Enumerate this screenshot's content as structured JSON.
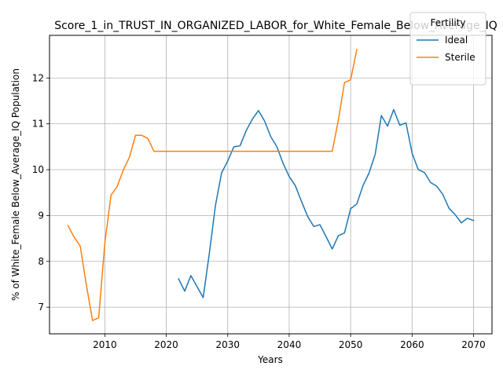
{
  "chart_data": {
    "type": "line",
    "title": "Score_1_in_TRUST_IN_ORGANIZED_LABOR_for_White_Female_Below_Average_IQ",
    "xlabel": "Years",
    "ylabel": "% of White_Female Below_Average_IQ Population",
    "xlim": [
      2001,
      2073
    ],
    "ylim": [
      6.42,
      12.93
    ],
    "xticks": [
      2010,
      2020,
      2030,
      2040,
      2050,
      2060,
      2070
    ],
    "yticks": [
      7,
      8,
      9,
      10,
      11,
      12
    ],
    "grid": true,
    "legend": {
      "title": "Fertility",
      "placement": "top-right"
    },
    "series": [
      {
        "name": "Ideal",
        "color": "#1f77b4",
        "x": [
          2022,
          2023,
          2024,
          2025,
          2026,
          2027,
          2028,
          2029,
          2030,
          2031,
          2032,
          2033,
          2034,
          2035,
          2036,
          2037,
          2038,
          2039,
          2040,
          2041,
          2042,
          2043,
          2044,
          2045,
          2046,
          2047,
          2048,
          2049,
          2050,
          2051,
          2052,
          2053,
          2054,
          2055,
          2056,
          2057,
          2058,
          2059,
          2060,
          2061,
          2062,
          2063,
          2064,
          2065,
          2066,
          2067,
          2068,
          2069,
          2070
        ],
        "y": [
          7.62,
          7.35,
          7.69,
          7.45,
          7.21,
          8.17,
          9.22,
          9.93,
          10.19,
          10.5,
          10.52,
          10.85,
          11.1,
          11.29,
          11.06,
          10.72,
          10.5,
          10.14,
          9.85,
          9.65,
          9.31,
          8.98,
          8.76,
          8.8,
          8.54,
          8.27,
          8.56,
          8.62,
          9.15,
          9.25,
          9.65,
          9.93,
          10.34,
          11.18,
          10.95,
          11.31,
          10.97,
          11.02,
          10.36,
          10.0,
          9.94,
          9.72,
          9.64,
          9.46,
          9.16,
          9.02,
          8.84,
          8.94,
          8.89
        ]
      },
      {
        "name": "Sterile",
        "color": "#ff7f0e",
        "x": [
          2004,
          2005,
          2006,
          2007,
          2008,
          2009,
          2010,
          2011,
          2012,
          2013,
          2014,
          2015,
          2016,
          2017,
          2018,
          2019,
          2020,
          2021,
          2022,
          2023,
          2024,
          2025,
          2026,
          2027,
          2028,
          2029,
          2030,
          2031,
          2032,
          2033,
          2034,
          2035,
          2036,
          2037,
          2038,
          2039,
          2040,
          2041,
          2042,
          2043,
          2044,
          2045,
          2046,
          2047,
          2048,
          2049,
          2050,
          2051
        ],
        "y": [
          8.78,
          8.53,
          8.33,
          7.48,
          6.71,
          6.77,
          8.4,
          9.44,
          9.63,
          9.99,
          10.27,
          10.75,
          10.75,
          10.68,
          10.4,
          10.4,
          10.4,
          10.4,
          10.4,
          10.4,
          10.4,
          10.4,
          10.4,
          10.4,
          10.4,
          10.4,
          10.4,
          10.4,
          10.4,
          10.4,
          10.4,
          10.4,
          10.4,
          10.4,
          10.4,
          10.4,
          10.4,
          10.4,
          10.4,
          10.4,
          10.4,
          10.4,
          10.4,
          10.4,
          11.08,
          11.9,
          11.96,
          12.62
        ]
      }
    ]
  }
}
